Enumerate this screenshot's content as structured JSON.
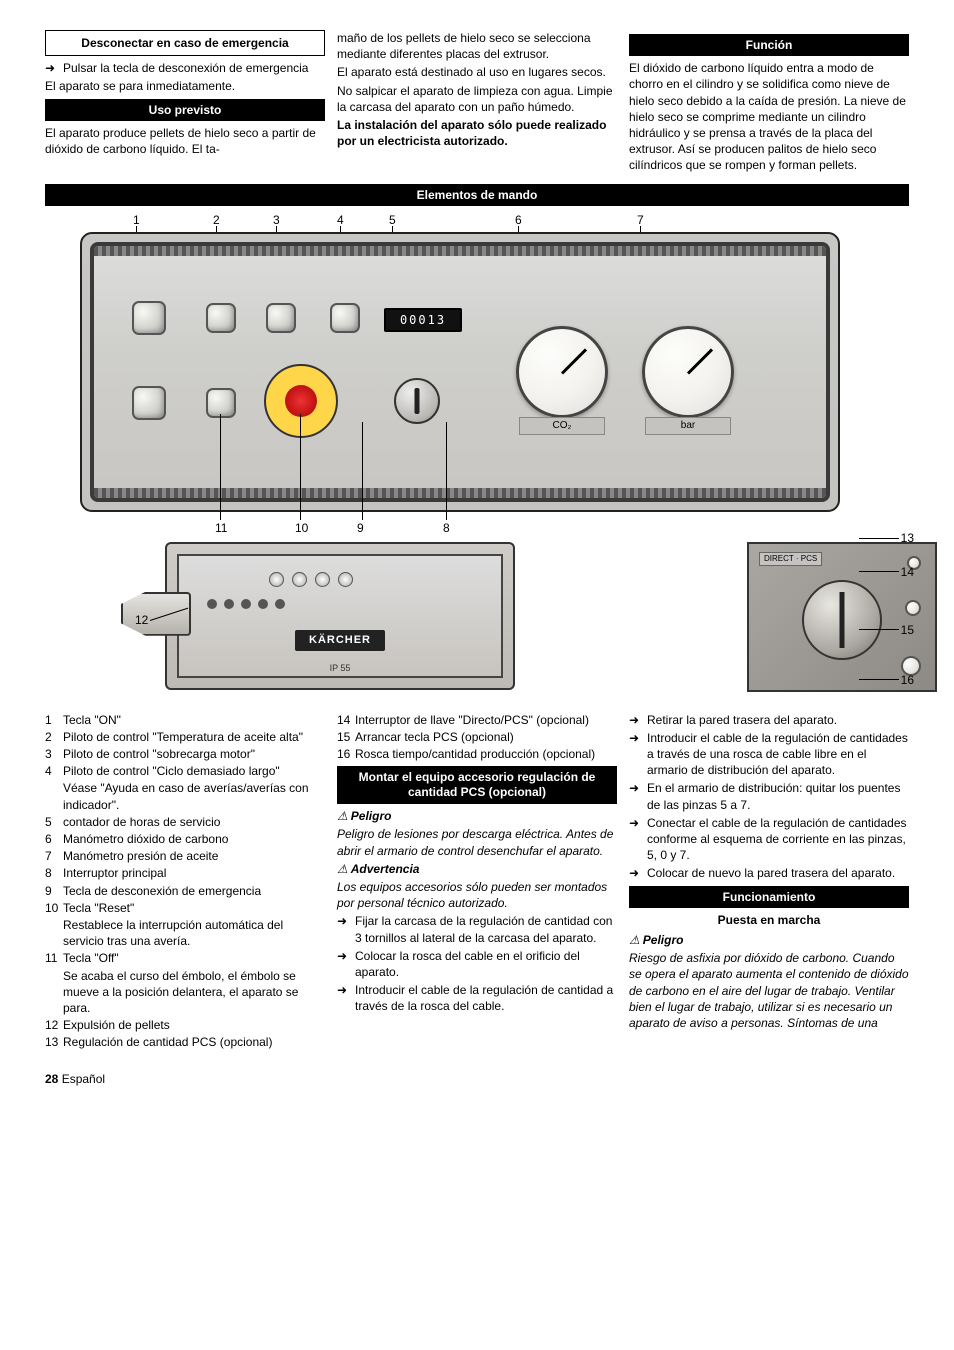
{
  "col1": {
    "boxTitle": "Desconectar en caso de emergencia",
    "b1": "Pulsar la tecla de desconexión de emergencia",
    "p1": "El aparato se para inmediatamente.",
    "h1": "Uso previsto",
    "p2": "El aparato produce pellets de hielo seco a partir de dióxido de carbono líquido. El ta-"
  },
  "col2": {
    "p1": "maño de los pellets de hielo seco se selecciona mediante diferentes placas del extrusor.",
    "p2": "El aparato está destinado al uso en lugares secos.",
    "p3": "No salpicar el aparato de limpieza con agua. Limpie la carcasa del aparato con un paño húmedo.",
    "p4": "La instalación del aparato sólo puede realizado por un electricista autorizado."
  },
  "col3": {
    "h1": "Función",
    "p1": "El dióxido de carbono líquido entra a modo de chorro en el cilindro y se solidifica como nieve de hielo seco debido a la caída de presión. La nieve de hielo seco se comprime mediante un cilindro hidráulico y se prensa a través de la placa del extrusor. Así se producen palitos de hielo seco cilíndricos que se rompen y forman pellets."
  },
  "fullHeader": "Elementos de mando",
  "labels": {
    "t1": "1",
    "t2": "2",
    "t3": "3",
    "t4": "4",
    "t5": "5",
    "t6": "6",
    "t7": "7",
    "t8": "8",
    "t9": "9",
    "t10": "10",
    "t11": "11",
    "t12": "12",
    "t13": "13",
    "t14": "14",
    "t15": "15",
    "t16": "16"
  },
  "panel": {
    "counter": "00013",
    "brand": "KÄRCHER",
    "ip": "IP 55",
    "co2": "CO₂",
    "tag": "DIRECT · PCS"
  },
  "legend": [
    {
      "n": "1",
      "t": "Tecla \"ON\""
    },
    {
      "n": "2",
      "t": "Piloto de control \"Temperatura de aceite alta\""
    },
    {
      "n": "3",
      "t": "Piloto de control \"sobrecarga motor\""
    },
    {
      "n": "4",
      "t": "Piloto de control \"Ciclo demasiado largo\"",
      "extra": "Véase \"Ayuda en caso de averías/averías con indicador\"."
    },
    {
      "n": "5",
      "t": "contador de horas de servicio"
    },
    {
      "n": "6",
      "t": "Manómetro dióxido de carbono"
    },
    {
      "n": "7",
      "t": "Manómetro presión de aceite"
    },
    {
      "n": "8",
      "t": "Interruptor principal"
    },
    {
      "n": "9",
      "t": "Tecla de desconexión de emergencia"
    },
    {
      "n": "10",
      "t": "Tecla \"Reset\"",
      "extra": "Restablece la interrupción automática del servicio tras una avería."
    },
    {
      "n": "11",
      "t": "Tecla \"Off\"",
      "extra": "Se acaba el curso del émbolo, el émbolo se mueve a la posición delantera, el aparato se para."
    },
    {
      "n": "12",
      "t": "Expulsión de pellets"
    },
    {
      "n": "13",
      "t": "Regulación de cantidad PCS (opcional)"
    }
  ],
  "legend2": [
    {
      "n": "14",
      "t": "Interruptor de llave \"Directo/PCS\" (opcional)"
    },
    {
      "n": "15",
      "t": "Arrancar tecla PCS (opcional)"
    },
    {
      "n": "16",
      "t": "Rosca tiempo/cantidad producción (opcional)"
    }
  ],
  "mount": {
    "h": "Montar el equipo accesorio regulación de cantidad PCS (opcional)",
    "w1": "Peligro",
    "w1t": "Peligro de lesiones por descarga eléctrica. Antes de abrir el armario de control desenchufar el aparato.",
    "w2": "Advertencia",
    "w2t": "Los equipos accesorios sólo pueden ser montados por personal técnico autorizado.",
    "s1": "Fijar la carcasa de la regulación de cantidad con 3 tornillos al lateral de la carcasa del aparato.",
    "s2": "Colocar la rosca del cable en el orificio del aparato.",
    "s3": "Introducir el cable de la regulación de cantidad a través de la rosca del cable."
  },
  "cont": {
    "s1": "Retirar la pared trasera del aparato.",
    "s2": "Introducir el cable de la regulación de cantidades a través de una rosca de cable libre en el armario de distribución del aparato.",
    "s3": "En el armario de distribución: quitar los puentes de las pinzas 5 a 7.",
    "s4": "Conectar el cable de la regulación de cantidades conforme al esquema de corriente en las pinzas, 5, 0 y 7.",
    "s5": "Colocar de nuevo la pared trasera del aparato."
  },
  "func": {
    "h": "Funcionamiento",
    "sub": "Puesta en marcha",
    "w": "Peligro",
    "wt": "Riesgo de asfixia por dióxido de carbono. Cuando se opera el aparato aumenta el contenido de dióxido de carbono en el aire del lugar de trabajo. Ventilar bien el lugar de trabajo, utilizar si es necesario un aparato de aviso a personas. Síntomas de una"
  },
  "footer": {
    "page": "28",
    "lang": "Español"
  }
}
